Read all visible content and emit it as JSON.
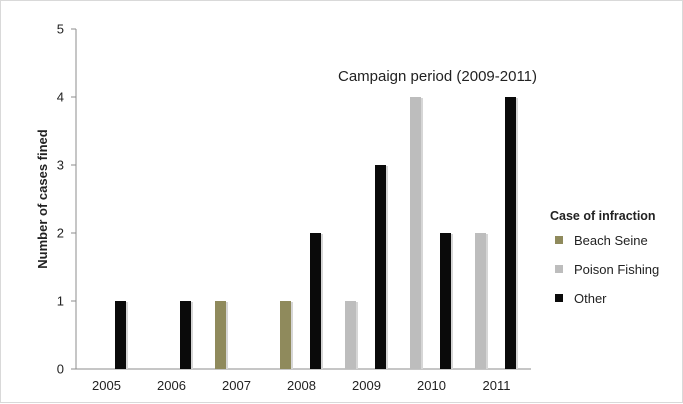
{
  "chart_data": {
    "type": "bar",
    "categories": [
      "2005",
      "2006",
      "2007",
      "2008",
      "2009",
      "2010",
      "2011"
    ],
    "series": [
      {
        "name": "Beach Seine",
        "color": "#8f8a5c",
        "values": [
          0,
          0,
          1,
          1,
          0,
          0,
          0
        ]
      },
      {
        "name": "Poison Fishing",
        "color": "#bdbdbd",
        "values": [
          0,
          0,
          0,
          0,
          1,
          4,
          2
        ]
      },
      {
        "name": "Other",
        "color": "#0a0a0a",
        "values": [
          1,
          1,
          0,
          2,
          3,
          2,
          4
        ]
      }
    ],
    "ylabel": "Number of cases fined",
    "xlabel": "",
    "ylim": [
      0,
      5
    ],
    "yticks": [
      "0",
      "1",
      "2",
      "3",
      "4",
      "5"
    ],
    "annotation": "Campaign period (2009-2011)",
    "legend": {
      "title": "Case of infraction",
      "position": "right"
    },
    "grid": false
  }
}
